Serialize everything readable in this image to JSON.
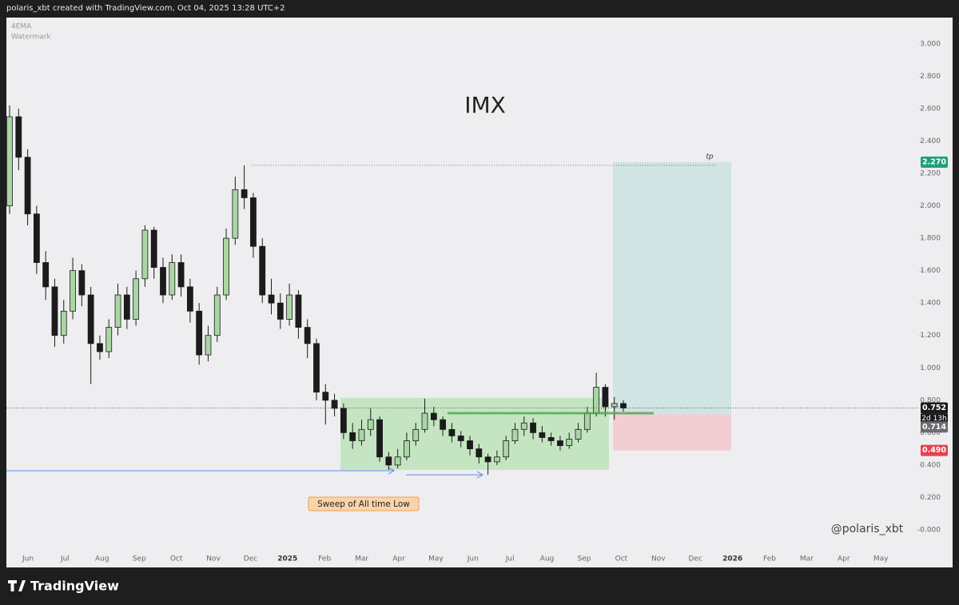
{
  "header": "polaris_xbt created with TradingView.com, Oct 04, 2025 13:28 UTC+2",
  "footer": "TradingView",
  "chart_data": {
    "type": "candlestick",
    "title": "IMX",
    "indicator_label": "4EMA",
    "watermark_label": "Watermark",
    "open": [
      2.0,
      2.55,
      2.3,
      1.95,
      1.65,
      1.5,
      1.2,
      1.35,
      1.6,
      1.45,
      1.15,
      1.1,
      1.25,
      1.45,
      1.3,
      1.55,
      1.85,
      1.62,
      1.45,
      1.65,
      1.5,
      1.35,
      1.08,
      1.2,
      1.45,
      1.8,
      2.1,
      2.05,
      1.75,
      1.45,
      1.4,
      1.3,
      1.45,
      1.25,
      1.15,
      0.85,
      0.8,
      0.75,
      0.6,
      0.55,
      0.62,
      0.68,
      0.45,
      0.4,
      0.45,
      0.55,
      0.62,
      0.72,
      0.68,
      0.62,
      0.58,
      0.55,
      0.5,
      0.45,
      0.42,
      0.45,
      0.55,
      0.62,
      0.66,
      0.6,
      0.57,
      0.55,
      0.52,
      0.56,
      0.62,
      0.72,
      0.88,
      0.76,
      0.78
    ],
    "high": [
      2.62,
      2.6,
      2.35,
      2.0,
      1.72,
      1.55,
      1.42,
      1.68,
      1.64,
      1.5,
      1.2,
      1.3,
      1.52,
      1.5,
      1.6,
      1.88,
      1.87,
      1.68,
      1.7,
      1.7,
      1.55,
      1.4,
      1.26,
      1.5,
      1.86,
      2.18,
      2.25,
      2.08,
      1.8,
      1.55,
      1.46,
      1.52,
      1.48,
      1.3,
      1.18,
      0.9,
      0.84,
      0.78,
      0.66,
      0.68,
      0.75,
      0.7,
      0.48,
      0.5,
      0.6,
      0.66,
      0.81,
      0.76,
      0.7,
      0.66,
      0.61,
      0.58,
      0.53,
      0.47,
      0.49,
      0.58,
      0.66,
      0.7,
      0.69,
      0.64,
      0.6,
      0.58,
      0.6,
      0.66,
      0.76,
      0.97,
      0.9,
      0.82,
      0.8
    ],
    "low": [
      1.95,
      2.22,
      1.88,
      1.58,
      1.42,
      1.13,
      1.15,
      1.3,
      1.38,
      0.9,
      1.05,
      1.06,
      1.2,
      1.24,
      1.26,
      1.5,
      1.55,
      1.4,
      1.42,
      1.44,
      1.28,
      1.02,
      1.04,
      1.16,
      1.42,
      1.76,
      1.98,
      1.68,
      1.4,
      1.33,
      1.24,
      1.26,
      1.18,
      1.06,
      0.8,
      0.65,
      0.7,
      0.56,
      0.5,
      0.52,
      0.58,
      0.42,
      0.37,
      0.38,
      0.43,
      0.52,
      0.6,
      0.64,
      0.58,
      0.54,
      0.51,
      0.46,
      0.41,
      0.34,
      0.4,
      0.43,
      0.53,
      0.58,
      0.56,
      0.54,
      0.52,
      0.49,
      0.5,
      0.54,
      0.6,
      0.7,
      0.7,
      0.68,
      0.73
    ],
    "close": [
      2.55,
      2.3,
      1.95,
      1.65,
      1.5,
      1.2,
      1.35,
      1.6,
      1.45,
      1.15,
      1.1,
      1.25,
      1.45,
      1.3,
      1.55,
      1.85,
      1.62,
      1.45,
      1.65,
      1.5,
      1.35,
      1.08,
      1.2,
      1.45,
      1.8,
      2.1,
      2.05,
      1.75,
      1.45,
      1.4,
      1.3,
      1.45,
      1.25,
      1.15,
      0.85,
      0.8,
      0.75,
      0.6,
      0.55,
      0.62,
      0.68,
      0.45,
      0.4,
      0.45,
      0.55,
      0.62,
      0.72,
      0.68,
      0.62,
      0.58,
      0.55,
      0.5,
      0.45,
      0.42,
      0.45,
      0.55,
      0.62,
      0.66,
      0.6,
      0.57,
      0.55,
      0.52,
      0.56,
      0.62,
      0.72,
      0.88,
      0.76,
      0.78,
      0.752
    ],
    "up_color": "#a9d6a3",
    "down_color": "#1b1b1b",
    "ylim": [
      -0.222,
      3.162
    ],
    "yticks": [
      {
        "value": 3,
        "label": "3.000"
      },
      {
        "value": 2.8,
        "label": "2.800"
      },
      {
        "value": 2.6,
        "label": "2.600"
      },
      {
        "value": 2.4,
        "label": "2.400"
      },
      {
        "value": 2.2,
        "label": "2.200"
      },
      {
        "value": 2,
        "label": "2.000"
      },
      {
        "value": 1.8,
        "label": "1.800"
      },
      {
        "value": 1.6,
        "label": "1.600"
      },
      {
        "value": 1.4,
        "label": "1.400"
      },
      {
        "value": 1.2,
        "label": "1.200"
      },
      {
        "value": 1,
        "label": "1.000"
      },
      {
        "value": 0.8,
        "label": "0.800"
      },
      {
        "value": 0.6,
        "label": "0.600"
      },
      {
        "value": 0.4,
        "label": "0.400"
      },
      {
        "value": 0.2,
        "label": "0.200"
      },
      {
        "value": 0,
        "label": "-0.000"
      }
    ],
    "x_labels": [
      "Jun",
      "Jul",
      "Aug",
      "Sep",
      "Oct",
      "Nov",
      "Dec",
      "2025",
      "Feb",
      "Mar",
      "Apr",
      "May",
      "Jun",
      "Jul",
      "Aug",
      "Sep",
      "Oct",
      "Nov",
      "Dec",
      "2026",
      "Feb",
      "Mar",
      "Apr",
      "May"
    ],
    "position": {
      "entry": {
        "value": 0.714,
        "label": "0.714"
      },
      "target": {
        "value": 2.27,
        "label": "2.270"
      },
      "stop": {
        "value": 0.49,
        "label": "0.490"
      },
      "target_label": "tp"
    },
    "last_price": {
      "value": 0.752,
      "label": "0.752"
    },
    "countdown": "2d 13h",
    "range_box": {
      "top": 0.815,
      "bottom": 0.37
    },
    "previous_high": 2.25,
    "breakout_level": 0.72,
    "sweep_level": 0.365,
    "sweep_low": 0.34,
    "annotation": "Sweep of All time Low",
    "signature": "@polaris_xbt"
  }
}
